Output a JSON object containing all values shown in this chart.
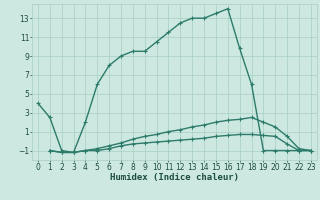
{
  "line1_x": [
    0,
    1,
    2,
    3,
    4,
    5,
    6,
    7,
    8,
    9,
    10,
    11,
    12,
    13,
    14,
    15,
    16,
    17,
    18,
    19,
    20,
    21,
    22,
    23
  ],
  "line1_y": [
    4,
    2.5,
    -1,
    -1.2,
    2,
    6,
    8,
    9,
    9.5,
    9.5,
    10.5,
    11.5,
    12.5,
    13,
    13,
    13.5,
    14,
    9.8,
    6,
    -1,
    -1,
    -1,
    -1,
    -1
  ],
  "line2_x": [
    1,
    2,
    3,
    4,
    5,
    6,
    7,
    8,
    9,
    10,
    11,
    12,
    13,
    14,
    15,
    16,
    17,
    18,
    19,
    20,
    21,
    22,
    23
  ],
  "line2_y": [
    -1,
    -1.2,
    -1.2,
    -1,
    -0.8,
    -0.5,
    -0.2,
    0.2,
    0.5,
    0.7,
    1.0,
    1.2,
    1.5,
    1.7,
    2.0,
    2.2,
    2.3,
    2.5,
    2.0,
    1.5,
    0.5,
    -0.8,
    -1
  ],
  "line3_x": [
    1,
    2,
    3,
    4,
    5,
    6,
    7,
    8,
    9,
    10,
    11,
    12,
    13,
    14,
    15,
    16,
    17,
    18,
    19,
    20,
    21,
    22,
    23
  ],
  "line3_y": [
    -1,
    -1.2,
    -1.2,
    -1,
    -1,
    -0.8,
    -0.5,
    -0.3,
    -0.2,
    -0.1,
    0.0,
    0.1,
    0.2,
    0.3,
    0.5,
    0.6,
    0.7,
    0.7,
    0.6,
    0.5,
    -0.3,
    -1,
    -1
  ],
  "color": "#2d7b6a",
  "bg_color": "#cce8e0",
  "grid_color": "#a8cec4",
  "xlabel": "Humidex (Indice chaleur)",
  "xlim": [
    -0.5,
    23.5
  ],
  "ylim": [
    -2.0,
    14.5
  ],
  "yticks": [
    -1,
    1,
    3,
    5,
    7,
    9,
    11,
    13
  ],
  "xticks": [
    0,
    1,
    2,
    3,
    4,
    5,
    6,
    7,
    8,
    9,
    10,
    11,
    12,
    13,
    14,
    15,
    16,
    17,
    18,
    19,
    20,
    21,
    22,
    23
  ],
  "marker": "+",
  "linewidth": 1.0,
  "markersize": 3,
  "markeredgewidth": 0.8,
  "font_color": "#1e4d40",
  "label_fontsize": 6.5,
  "tick_fontsize": 5.5
}
